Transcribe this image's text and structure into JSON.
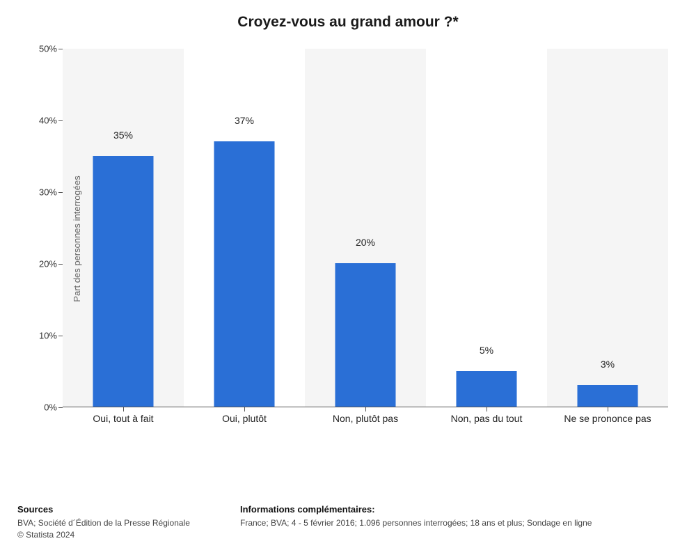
{
  "chart": {
    "type": "bar",
    "title": "Croyez-vous au grand amour ?*",
    "y_axis_label": "Part des personnes interrogées",
    "ylim": [
      0,
      50
    ],
    "ytick_step": 10,
    "y_suffix": "%",
    "bar_color": "#2a6fd6",
    "alt_bg_color": "#f5f5f5",
    "bg_color": "#ffffff",
    "bar_width_ratio": 0.5,
    "categories": [
      "Oui, tout à fait",
      "Oui, plutôt",
      "Non, plutôt pas",
      "Non, pas du tout",
      "Ne se prononce pas"
    ],
    "values": [
      35,
      37,
      20,
      5,
      3
    ]
  },
  "footer": {
    "sources_heading": "Sources",
    "sources_line": "BVA; Société d´Édition de la Presse Régionale",
    "copyright": "© Statista 2024",
    "info_heading": "Informations complémentaires:",
    "info_line": "France; BVA; 4 - 5 février 2016; 1.096 personnes interrogées; 18 ans et plus; Sondage en ligne"
  }
}
